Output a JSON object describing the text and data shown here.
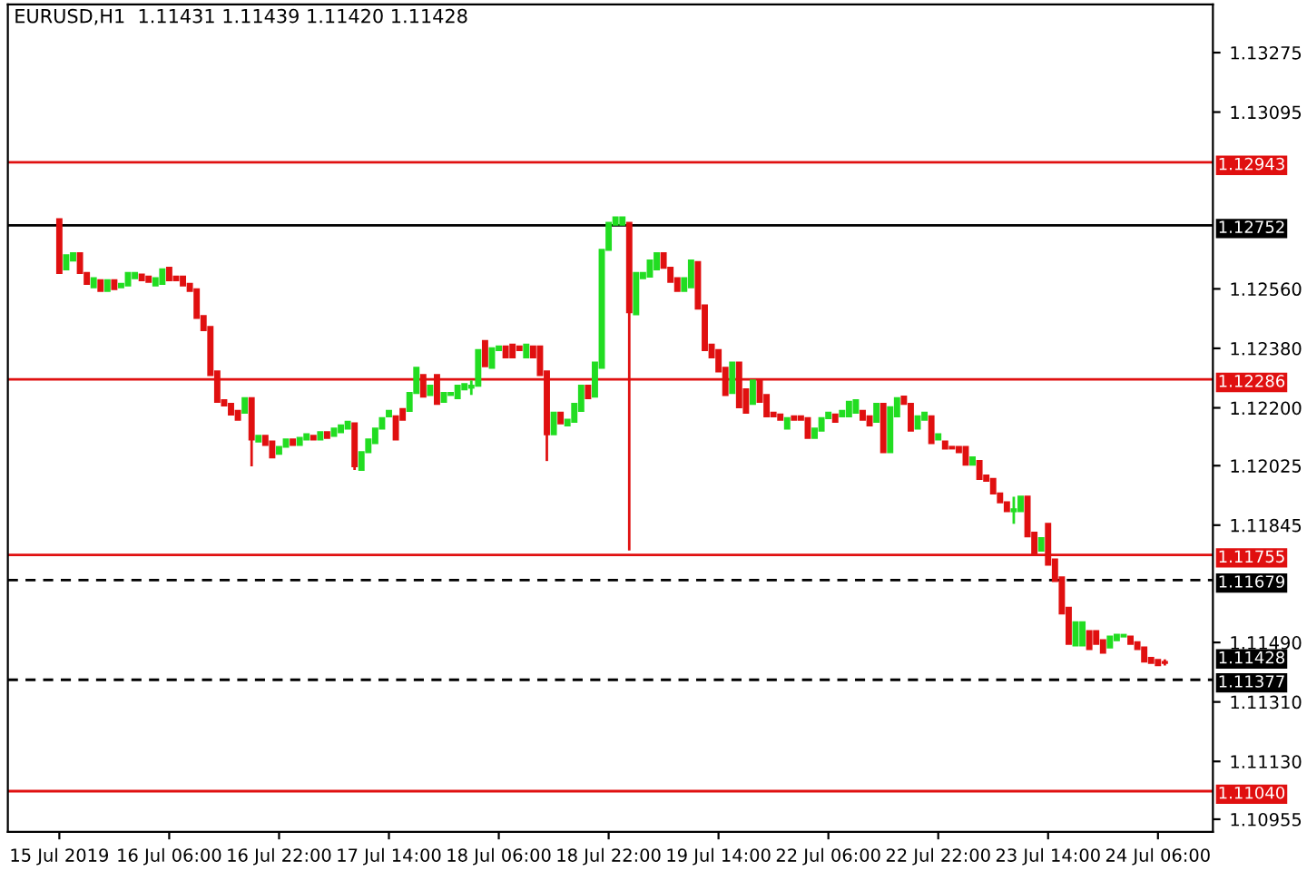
{
  "chart_data": {
    "type": "candlestick",
    "title": "EURUSD,H1  1.11431 1.11439 1.11420 1.11428",
    "categories": [
      "15 Jul 2019",
      null,
      null,
      null,
      null,
      null,
      null,
      null,
      null,
      null,
      null,
      null,
      null,
      null,
      null,
      null,
      "16 Jul 06:00",
      null,
      null,
      null,
      null,
      null,
      null,
      null,
      null,
      null,
      null,
      null,
      null,
      null,
      null,
      null,
      "16 Jul 22:00",
      null,
      null,
      null,
      null,
      null,
      null,
      null,
      null,
      null,
      null,
      null,
      null,
      null,
      null,
      null,
      "17 Jul 14:00",
      null,
      null,
      null,
      null,
      null,
      null,
      null,
      null,
      null,
      null,
      null,
      null,
      null,
      null,
      null,
      "18 Jul 06:00",
      null,
      null,
      null,
      null,
      null,
      null,
      null,
      null,
      null,
      null,
      null,
      null,
      null,
      null,
      null,
      "18 Jul 22:00",
      null,
      null,
      null,
      null,
      null,
      null,
      null,
      null,
      null,
      null,
      null,
      null,
      null,
      null,
      null,
      "19 Jul 14:00",
      null,
      null,
      null,
      null,
      null,
      null,
      null,
      null,
      null,
      null,
      null,
      null,
      null,
      null,
      null,
      "22 Jul 06:00",
      null,
      null,
      null,
      null,
      null,
      null,
      null,
      null,
      null,
      null,
      null,
      null,
      null,
      null,
      null,
      "22 Jul 22:00",
      null,
      null,
      null,
      null,
      null,
      null,
      null,
      null,
      null,
      null,
      null,
      null,
      null,
      null,
      null,
      "23 Jul 14:00",
      null,
      null,
      null,
      null,
      null,
      null,
      null,
      null,
      null,
      null,
      null,
      null,
      null,
      null,
      null,
      "24 Jul 06:00",
      null
    ],
    "ohlc": [
      [
        1.12771,
        1.12771,
        1.12608,
        1.12608
      ],
      [
        1.12619,
        1.12662,
        1.12619,
        1.12662
      ],
      [
        1.12646,
        1.12668,
        1.12646,
        1.12668
      ],
      [
        1.12668,
        1.12668,
        1.12608,
        1.12608
      ],
      [
        1.12608,
        1.12608,
        1.12575,
        1.12575
      ],
      [
        1.12565,
        1.12592,
        1.12565,
        1.12592
      ],
      [
        1.12586,
        1.12586,
        1.12554,
        1.12554
      ],
      [
        1.12554,
        1.12586,
        1.12554,
        1.12586
      ],
      [
        1.12586,
        1.12586,
        1.12559,
        1.12559
      ],
      [
        1.12565,
        1.12575,
        1.12565,
        1.12575
      ],
      [
        1.1257,
        1.12608,
        1.1257,
        1.12608
      ],
      [
        1.12592,
        1.12608,
        1.12592,
        1.12608
      ],
      [
        1.12603,
        1.12603,
        1.12586,
        1.12586
      ],
      [
        1.12597,
        1.12597,
        1.12581,
        1.12581
      ],
      [
        1.1257,
        1.12592,
        1.1257,
        1.12592
      ],
      [
        1.12575,
        1.12619,
        1.12575,
        1.12619
      ],
      [
        1.12624,
        1.12624,
        1.12586,
        1.12586
      ],
      [
        1.12597,
        1.12597,
        1.12586,
        1.12586
      ],
      [
        1.12597,
        1.12597,
        1.1257,
        1.1257
      ],
      [
        1.12575,
        1.12575,
        1.12554,
        1.12554
      ],
      [
        1.12559,
        1.12559,
        1.12472,
        1.12472
      ],
      [
        1.12478,
        1.12478,
        1.12435,
        1.12435
      ],
      [
        1.12445,
        1.12445,
        1.12299,
        1.12299
      ],
      [
        1.1231,
        1.1231,
        1.12218,
        1.12218
      ],
      [
        1.12223,
        1.12223,
        1.12207,
        1.12207
      ],
      [
        1.12212,
        1.12212,
        1.1218,
        1.1218
      ],
      [
        1.12191,
        1.12191,
        1.12164,
        1.12164
      ],
      [
        1.12185,
        1.12229,
        1.12185,
        1.12229
      ],
      [
        1.12229,
        1.12229,
        1.12023,
        1.12104
      ],
      [
        1.12098,
        1.12115,
        1.12098,
        1.12115
      ],
      [
        1.12115,
        1.12115,
        1.12088,
        1.12088
      ],
      [
        1.12098,
        1.12098,
        1.1205,
        1.1205
      ],
      [
        1.12061,
        1.12082,
        1.12061,
        1.12082
      ],
      [
        1.12082,
        1.12104,
        1.12082,
        1.12104
      ],
      [
        1.12104,
        1.12104,
        1.12088,
        1.12088
      ],
      [
        1.12088,
        1.12109,
        1.12088,
        1.12109
      ],
      [
        1.12104,
        1.1212,
        1.12104,
        1.1212
      ],
      [
        1.12115,
        1.12115,
        1.12104,
        1.12104
      ],
      [
        1.12104,
        1.12126,
        1.12104,
        1.12126
      ],
      [
        1.12126,
        1.12126,
        1.12109,
        1.12109
      ],
      [
        1.12115,
        1.12137,
        1.12115,
        1.12137
      ],
      [
        1.12126,
        1.12147,
        1.12126,
        1.12147
      ],
      [
        1.12137,
        1.12158,
        1.12137,
        1.12158
      ],
      [
        1.12153,
        1.12153,
        1.12012,
        1.12023
      ],
      [
        1.12012,
        1.12066,
        1.12012,
        1.12066
      ],
      [
        1.12066,
        1.12104,
        1.12066,
        1.12104
      ],
      [
        1.12093,
        1.12137,
        1.12093,
        1.12137
      ],
      [
        1.12137,
        1.12169,
        1.12137,
        1.12169
      ],
      [
        1.12174,
        1.12191,
        1.12174,
        1.12191
      ],
      [
        1.12174,
        1.12174,
        1.12104,
        1.12104
      ],
      [
        1.12196,
        1.12196,
        1.12164,
        1.12164
      ],
      [
        1.12191,
        1.12245,
        1.12191,
        1.12245
      ],
      [
        1.12245,
        1.12321,
        1.12245,
        1.12321
      ],
      [
        1.12299,
        1.12299,
        1.12234,
        1.12234
      ],
      [
        1.12239,
        1.12267,
        1.12239,
        1.12267
      ],
      [
        1.12299,
        1.12299,
        1.12212,
        1.12212
      ],
      [
        1.12218,
        1.12245,
        1.12218,
        1.12245
      ],
      [
        1.12239,
        1.12245,
        1.12239,
        1.12245
      ],
      [
        1.12229,
        1.12267,
        1.12229,
        1.12267
      ],
      [
        1.12256,
        1.12272,
        1.12256,
        1.12272
      ],
      [
        1.12261,
        1.12283,
        1.12239,
        1.12267
      ],
      [
        1.12267,
        1.12375,
        1.12267,
        1.12375
      ],
      [
        1.12402,
        1.12402,
        1.12326,
        1.12326
      ],
      [
        1.12321,
        1.1238,
        1.12321,
        1.1238
      ],
      [
        1.12375,
        1.12386,
        1.12375,
        1.12386
      ],
      [
        1.12386,
        1.12386,
        1.12353,
        1.12353
      ],
      [
        1.12391,
        1.12391,
        1.12353,
        1.12353
      ],
      [
        1.12386,
        1.12386,
        1.12375,
        1.12375
      ],
      [
        1.12353,
        1.12391,
        1.12353,
        1.12391
      ],
      [
        1.12386,
        1.12386,
        1.12353,
        1.12353
      ],
      [
        1.12386,
        1.12386,
        1.12299,
        1.12299
      ],
      [
        1.1231,
        1.1231,
        1.12039,
        1.1212
      ],
      [
        1.1212,
        1.12185,
        1.1212,
        1.12185
      ],
      [
        1.12185,
        1.12185,
        1.12153,
        1.12153
      ],
      [
        1.12147,
        1.12164,
        1.12147,
        1.12164
      ],
      [
        1.12158,
        1.12212,
        1.12158,
        1.12212
      ],
      [
        1.12191,
        1.12267,
        1.12191,
        1.12267
      ],
      [
        1.12267,
        1.12267,
        1.12229,
        1.12229
      ],
      [
        1.12234,
        1.12337,
        1.12234,
        1.12337
      ],
      [
        1.12321,
        1.12678,
        1.12321,
        1.12678
      ],
      [
        1.12678,
        1.1276,
        1.12678,
        1.1276
      ],
      [
        1.12754,
        1.12776,
        1.12754,
        1.12776
      ],
      [
        1.12754,
        1.12776,
        1.12754,
        1.12776
      ],
      [
        1.1276,
        1.1276,
        1.11768,
        1.12489
      ],
      [
        1.12483,
        1.12608,
        1.12483,
        1.12608
      ],
      [
        1.12592,
        1.12608,
        1.12592,
        1.12608
      ],
      [
        1.12597,
        1.12646,
        1.12597,
        1.12646
      ],
      [
        1.12619,
        1.12668,
        1.12619,
        1.12668
      ],
      [
        1.12668,
        1.12668,
        1.12624,
        1.12624
      ],
      [
        1.12624,
        1.12624,
        1.12581,
        1.12581
      ],
      [
        1.12592,
        1.12592,
        1.12554,
        1.12554
      ],
      [
        1.12554,
        1.12592,
        1.12554,
        1.12592
      ],
      [
        1.12565,
        1.12646,
        1.12565,
        1.12646
      ],
      [
        1.12641,
        1.12641,
        1.125,
        1.125
      ],
      [
        1.1251,
        1.1251,
        1.12375,
        1.12375
      ],
      [
        1.12391,
        1.12391,
        1.12353,
        1.12353
      ],
      [
        1.12375,
        1.12375,
        1.1231,
        1.1231
      ],
      [
        1.12321,
        1.12321,
        1.12239,
        1.12239
      ],
      [
        1.12245,
        1.12337,
        1.12245,
        1.12337
      ],
      [
        1.12337,
        1.12337,
        1.12202,
        1.12202
      ],
      [
        1.12256,
        1.12256,
        1.12185,
        1.12185
      ],
      [
        1.12212,
        1.12283,
        1.12212,
        1.12283
      ],
      [
        1.12283,
        1.12283,
        1.12218,
        1.12218
      ],
      [
        1.12239,
        1.12239,
        1.12174,
        1.12174
      ],
      [
        1.12185,
        1.12185,
        1.12174,
        1.12174
      ],
      [
        1.1218,
        1.1218,
        1.12164,
        1.12164
      ],
      [
        1.12137,
        1.12169,
        1.12137,
        1.12169
      ],
      [
        1.12174,
        1.12174,
        1.12164,
        1.12164
      ],
      [
        1.12174,
        1.12174,
        1.12164,
        1.12164
      ],
      [
        1.12169,
        1.12169,
        1.12109,
        1.12109
      ],
      [
        1.12109,
        1.12137,
        1.12109,
        1.12137
      ],
      [
        1.12131,
        1.12169,
        1.12131,
        1.12169
      ],
      [
        1.12169,
        1.12185,
        1.12169,
        1.12185
      ],
      [
        1.1218,
        1.1218,
        1.12158,
        1.12158
      ],
      [
        1.12174,
        1.12191,
        1.12174,
        1.12191
      ],
      [
        1.12174,
        1.12218,
        1.12174,
        1.12218
      ],
      [
        1.12185,
        1.12223,
        1.12185,
        1.12223
      ],
      [
        1.12191,
        1.12191,
        1.12164,
        1.12164
      ],
      [
        1.12174,
        1.12174,
        1.12147,
        1.12147
      ],
      [
        1.12158,
        1.12212,
        1.12158,
        1.12212
      ],
      [
        1.12212,
        1.12212,
        1.12066,
        1.12066
      ],
      [
        1.12066,
        1.12202,
        1.12066,
        1.12202
      ],
      [
        1.12174,
        1.12229,
        1.12174,
        1.12229
      ],
      [
        1.12234,
        1.12234,
        1.12212,
        1.12212
      ],
      [
        1.12212,
        1.12212,
        1.12131,
        1.12131
      ],
      [
        1.12137,
        1.12174,
        1.12137,
        1.12174
      ],
      [
        1.12164,
        1.12185,
        1.12164,
        1.12185
      ],
      [
        1.12174,
        1.12174,
        1.12093,
        1.12093
      ],
      [
        1.12104,
        1.1212,
        1.12104,
        1.1212
      ],
      [
        1.12098,
        1.12098,
        1.12077,
        1.12077
      ],
      [
        1.12082,
        1.12082,
        1.12077,
        1.12077
      ],
      [
        1.12082,
        1.12082,
        1.12066,
        1.12066
      ],
      [
        1.12082,
        1.12082,
        1.12028,
        1.12028
      ],
      [
        1.12028,
        1.1205,
        1.12028,
        1.1205
      ],
      [
        1.12039,
        1.12039,
        1.11985,
        1.11985
      ],
      [
        1.11995,
        1.11995,
        1.11979,
        1.11979
      ],
      [
        1.11985,
        1.11985,
        1.11941,
        1.11941
      ],
      [
        1.11941,
        1.11941,
        1.11914,
        1.11914
      ],
      [
        1.11914,
        1.11914,
        1.11887,
        1.11887
      ],
      [
        1.11887,
        1.11931,
        1.11849,
        1.11893
      ],
      [
        1.11887,
        1.11931,
        1.11887,
        1.11931
      ],
      [
        1.11931,
        1.11931,
        1.11811,
        1.11811
      ],
      [
        1.11822,
        1.11822,
        1.11757,
        1.11757
      ],
      [
        1.11768,
        1.11806,
        1.11768,
        1.11806
      ],
      [
        1.11849,
        1.11849,
        1.11725,
        1.11725
      ],
      [
        1.11741,
        1.11741,
        1.11676,
        1.11676
      ],
      [
        1.11687,
        1.11687,
        1.11578,
        1.11578
      ],
      [
        1.11595,
        1.11595,
        1.11486,
        1.11486
      ],
      [
        1.11481,
        1.11551,
        1.11481,
        1.11551
      ],
      [
        1.11481,
        1.11551,
        1.11481,
        1.11551
      ],
      [
        1.11524,
        1.11524,
        1.1147,
        1.1147
      ],
      [
        1.11524,
        1.11524,
        1.11486,
        1.11486
      ],
      [
        1.11497,
        1.11497,
        1.11459,
        1.11459
      ],
      [
        1.11475,
        1.11508,
        1.11475,
        1.11508
      ],
      [
        1.11497,
        1.11513,
        1.11497,
        1.11513
      ],
      [
        1.11508,
        1.11513,
        1.11508,
        1.11513
      ],
      [
        1.11508,
        1.11508,
        1.11486,
        1.11486
      ],
      [
        1.11491,
        1.11491,
        1.1147,
        1.1147
      ],
      [
        1.11475,
        1.11475,
        1.11432,
        1.11432
      ],
      [
        1.11443,
        1.11443,
        1.11428,
        1.11428
      ],
      [
        1.11437,
        1.11437,
        1.11421,
        1.11421
      ],
      [
        1.11431,
        1.11439,
        1.1142,
        1.11428
      ]
    ],
    "colors": [
      "#e01010",
      "#22dd22",
      "#22dd22",
      "#e01010",
      "#e01010",
      "#22dd22",
      "#e01010",
      "#22dd22",
      "#e01010",
      "#22dd22",
      "#22dd22",
      "#22dd22",
      "#e01010",
      "#e01010",
      "#22dd22",
      "#22dd22",
      "#e01010",
      "#e01010",
      "#e01010",
      "#e01010",
      "#e01010",
      "#e01010",
      "#e01010",
      "#e01010",
      "#e01010",
      "#e01010",
      "#e01010",
      "#22dd22",
      "#e01010",
      "#22dd22",
      "#e01010",
      "#e01010",
      "#22dd22",
      "#22dd22",
      "#e01010",
      "#22dd22",
      "#22dd22",
      "#e01010",
      "#22dd22",
      "#e01010",
      "#22dd22",
      "#22dd22",
      "#22dd22",
      "#e01010",
      "#22dd22",
      "#22dd22",
      "#22dd22",
      "#22dd22",
      "#22dd22",
      "#e01010",
      "#e01010",
      "#22dd22",
      "#22dd22",
      "#e01010",
      "#22dd22",
      "#e01010",
      "#22dd22",
      "#22dd22",
      "#22dd22",
      "#22dd22",
      "#22dd22",
      "#22dd22",
      "#e01010",
      "#22dd22",
      "#22dd22",
      "#e01010",
      "#e01010",
      "#e01010",
      "#22dd22",
      "#e01010",
      "#e01010",
      "#e01010",
      "#22dd22",
      "#e01010",
      "#22dd22",
      "#22dd22",
      "#22dd22",
      "#e01010",
      "#22dd22",
      "#22dd22",
      "#22dd22",
      "#22dd22",
      "#22dd22",
      "#e01010",
      "#22dd22",
      "#22dd22",
      "#22dd22",
      "#22dd22",
      "#e01010",
      "#e01010",
      "#e01010",
      "#22dd22",
      "#22dd22",
      "#e01010",
      "#e01010",
      "#e01010",
      "#e01010",
      "#e01010",
      "#22dd22",
      "#e01010",
      "#e01010",
      "#22dd22",
      "#e01010",
      "#e01010",
      "#e01010",
      "#e01010",
      "#22dd22",
      "#e01010",
      "#e01010",
      "#e01010",
      "#22dd22",
      "#22dd22",
      "#22dd22",
      "#e01010",
      "#22dd22",
      "#22dd22",
      "#22dd22",
      "#e01010",
      "#e01010",
      "#22dd22",
      "#e01010",
      "#22dd22",
      "#22dd22",
      "#e01010",
      "#e01010",
      "#22dd22",
      "#22dd22",
      "#e01010",
      "#22dd22",
      "#e01010",
      "#e01010",
      "#e01010",
      "#e01010",
      "#22dd22",
      "#e01010",
      "#e01010",
      "#e01010",
      "#e01010",
      "#e01010",
      "#22dd22",
      "#22dd22",
      "#e01010",
      "#e01010",
      "#22dd22",
      "#e01010",
      "#e01010",
      "#e01010",
      "#e01010",
      "#22dd22",
      "#22dd22",
      "#e01010",
      "#e01010",
      "#e01010",
      "#22dd22",
      "#22dd22",
      "#22dd22",
      "#e01010",
      "#e01010",
      "#e01010",
      "#e01010",
      "#e01010",
      "#e01010"
    ],
    "ylim": [
      1.10917,
      1.13421
    ],
    "yticks": [
      1.13275,
      1.13095,
      {
        "value": 1.1256,
        "label": "1.12560"
      },
      {
        "value": 1.1238,
        "label": "1.12380"
      },
      {
        "value": 1.122,
        "label": "1.12200"
      },
      1.12025,
      1.11845,
      {
        "value": 1.1149,
        "label": "1.11490"
      },
      {
        "value": 1.1131,
        "label": "1.11310"
      },
      {
        "value": 1.1113,
        "label": "1.11130"
      },
      1.10955
    ],
    "ref_lines": [
      {
        "axis": "y",
        "value": 1.12943,
        "label": "1.12943",
        "color": "#e01010",
        "line_style": "solid"
      },
      {
        "axis": "y",
        "value": 1.12752,
        "label": "1.12752",
        "color": "#000000",
        "line_style": "solid"
      },
      {
        "axis": "y",
        "value": 1.12286,
        "label": "1.12286",
        "color": "#e01010",
        "line_style": "solid"
      },
      {
        "axis": "y",
        "value": 1.11755,
        "label": "1.11755",
        "color": "#e01010",
        "line_style": "solid"
      },
      {
        "axis": "y",
        "value": 1.11679,
        "label": "1.11679",
        "color": "#000000",
        "line_style": "dashed"
      },
      {
        "axis": "y",
        "value": 1.11377,
        "label": "1.11377",
        "color": "#000000",
        "line_style": "dashed"
      },
      {
        "axis": "y",
        "value": 1.1104,
        "label": "1.11040",
        "color": "#e01010",
        "line_style": "solid"
      }
    ],
    "annotations": [
      "1.11428"
    ],
    "grid": false
  }
}
